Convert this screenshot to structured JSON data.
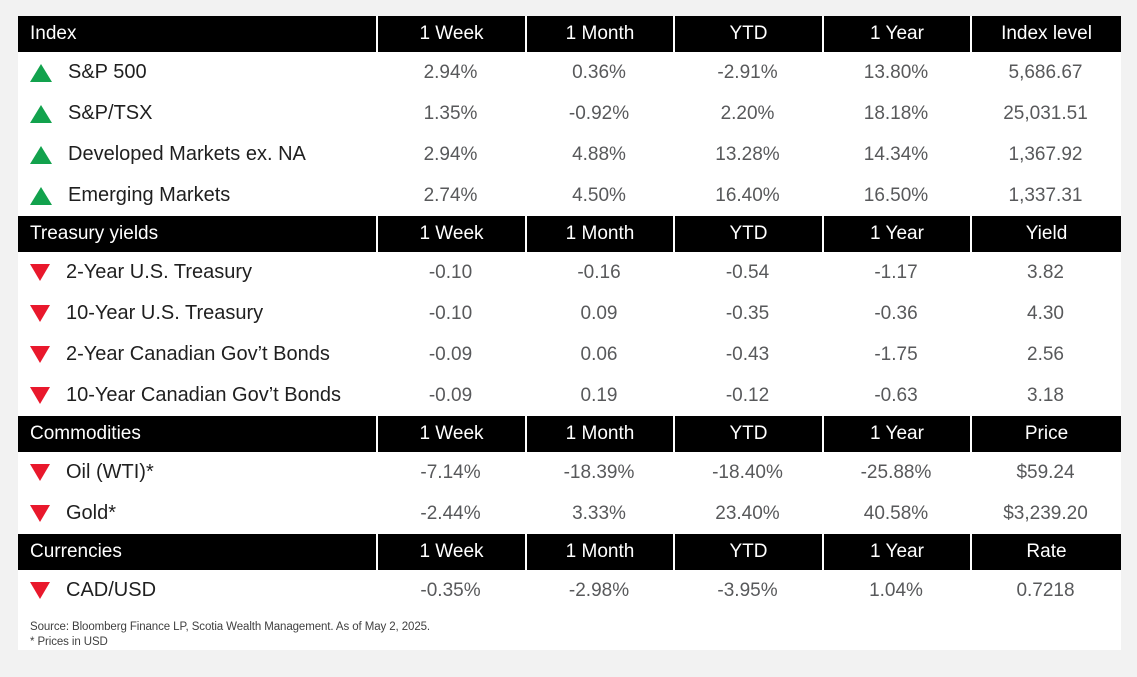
{
  "colors": {
    "header_bg": "#000000",
    "header_text": "#ffffff",
    "up": "#12a24d",
    "down": "#e9182c",
    "value_text": "#58595b",
    "label_text": "#1f1f1f",
    "page_bg": "#f2f2f2",
    "card_bg": "#ffffff"
  },
  "sections": [
    {
      "title": "Index",
      "columns": [
        "1 Week",
        "1 Month",
        "YTD",
        "1 Year",
        "Index level"
      ],
      "rows": [
        {
          "label": "S&P 500",
          "direction": "up",
          "values": [
            "2.94%",
            "0.36%",
            "-2.91%",
            "13.80%",
            "5,686.67"
          ]
        },
        {
          "label": "S&P/TSX",
          "direction": "up",
          "values": [
            "1.35%",
            "-0.92%",
            "2.20%",
            "18.18%",
            "25,031.51"
          ]
        },
        {
          "label": "Developed Markets ex. NA",
          "direction": "up",
          "values": [
            "2.94%",
            "4.88%",
            "13.28%",
            "14.34%",
            "1,367.92"
          ]
        },
        {
          "label": "Emerging Markets",
          "direction": "up",
          "values": [
            "2.74%",
            "4.50%",
            "16.40%",
            "16.50%",
            "1,337.31"
          ]
        }
      ]
    },
    {
      "title": "Treasury yields",
      "columns": [
        "1 Week",
        "1 Month",
        "YTD",
        "1 Year",
        "Yield"
      ],
      "rows": [
        {
          "label": "2-Year U.S. Treasury",
          "direction": "down",
          "values": [
            "-0.10",
            "-0.16",
            "-0.54",
            "-1.17",
            "3.82"
          ]
        },
        {
          "label": "10-Year U.S. Treasury",
          "direction": "down",
          "values": [
            "-0.10",
            "0.09",
            "-0.35",
            "-0.36",
            "4.30"
          ]
        },
        {
          "label": "2-Year Canadian Gov’t Bonds",
          "direction": "down",
          "values": [
            "-0.09",
            "0.06",
            "-0.43",
            "-1.75",
            "2.56"
          ]
        },
        {
          "label": "10-Year Canadian Gov’t Bonds",
          "direction": "down",
          "values": [
            "-0.09",
            "0.19",
            "-0.12",
            "-0.63",
            "3.18"
          ]
        }
      ]
    },
    {
      "title": "Commodities",
      "columns": [
        "1 Week",
        "1 Month",
        "YTD",
        "1 Year",
        "Price"
      ],
      "rows": [
        {
          "label": "Oil (WTI)*",
          "direction": "down",
          "values": [
            "-7.14%",
            "-18.39%",
            "-18.40%",
            "-25.88%",
            "$59.24"
          ]
        },
        {
          "label": "Gold*",
          "direction": "down",
          "values": [
            "-2.44%",
            "3.33%",
            "23.40%",
            "40.58%",
            "$3,239.20"
          ]
        }
      ]
    },
    {
      "title": "Currencies",
      "columns": [
        "1 Week",
        "1 Month",
        "YTD",
        "1 Year",
        "Rate"
      ],
      "rows": [
        {
          "label": "CAD/USD",
          "direction": "down",
          "values": [
            "-0.35%",
            "-2.98%",
            "-3.95%",
            "1.04%",
            "0.7218"
          ]
        }
      ]
    }
  ],
  "footer": {
    "source_line": "Source: Bloomberg Finance LP, Scotia Wealth Management. As of May 2, 2025.",
    "note_line": "* Prices in USD"
  }
}
